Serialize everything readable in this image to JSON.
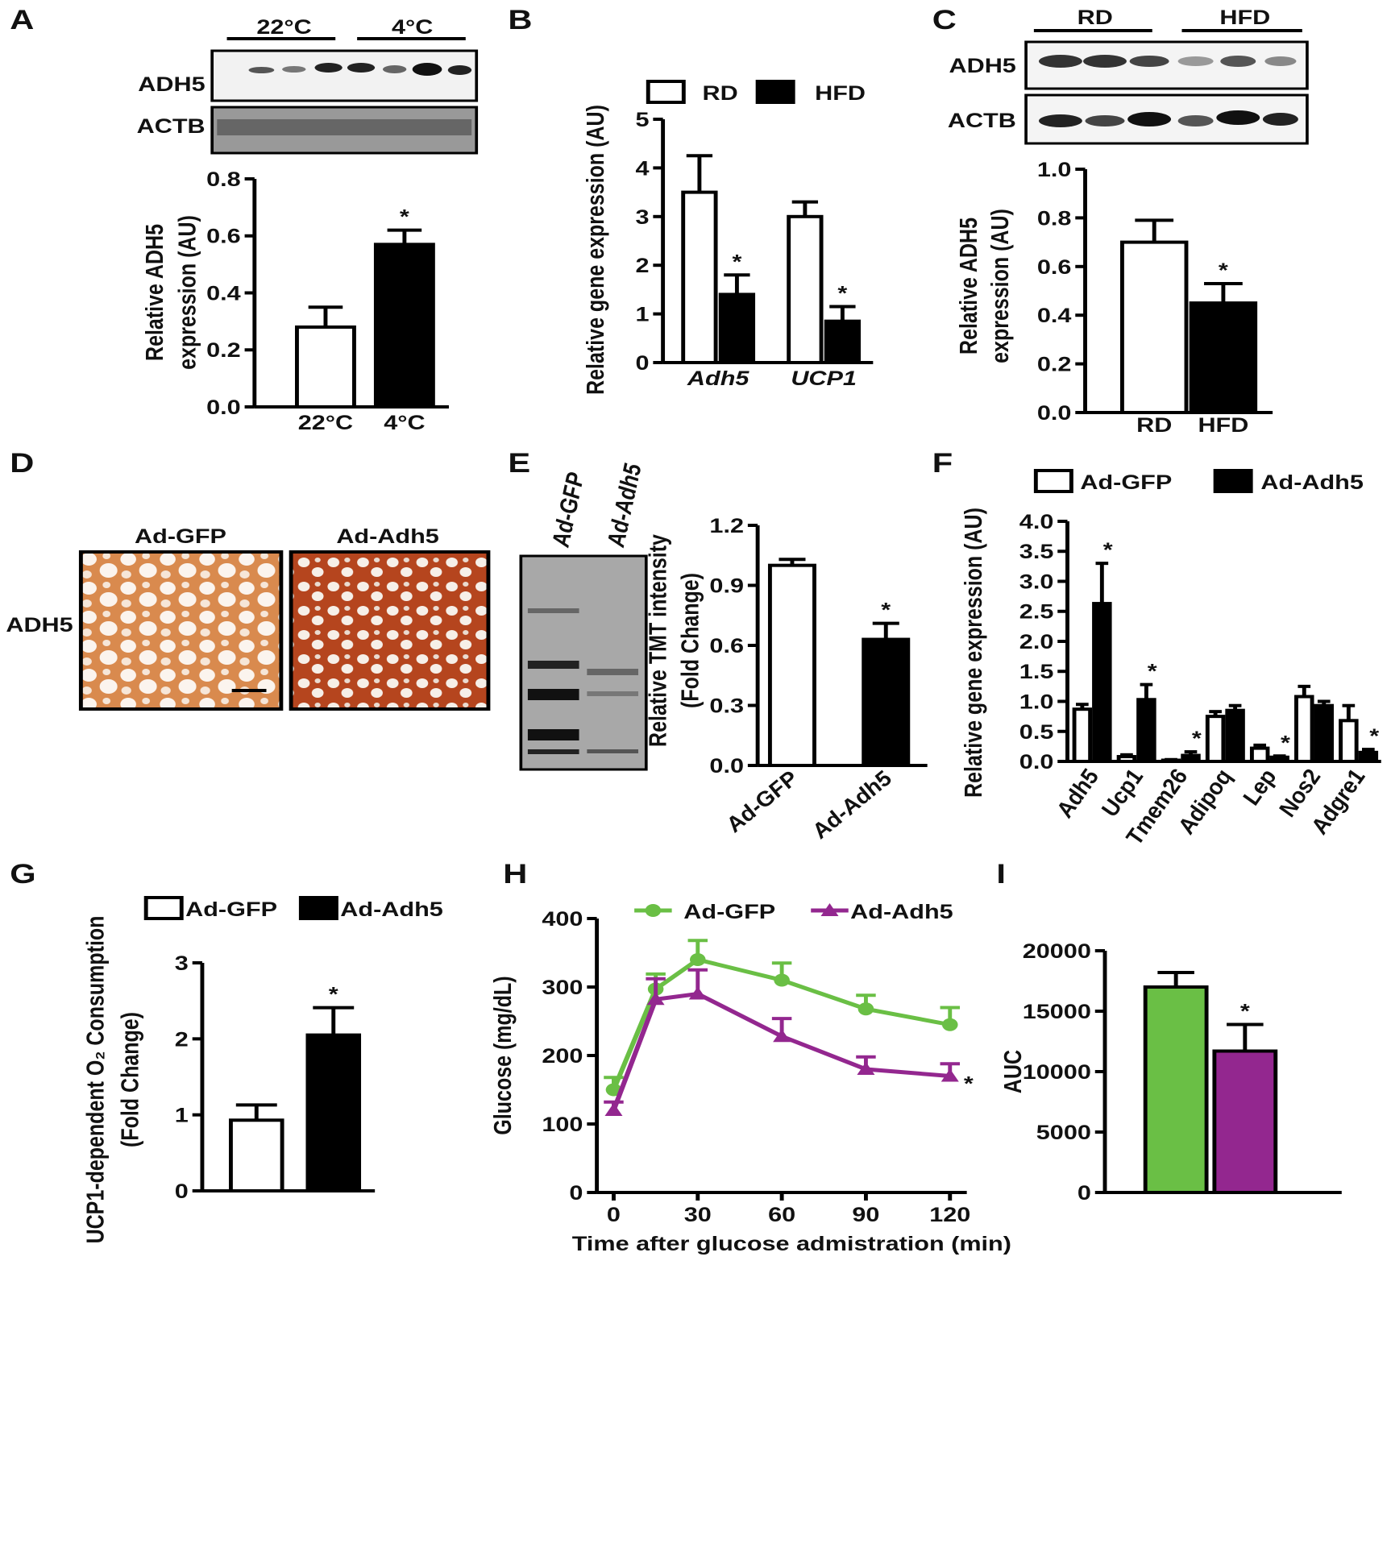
{
  "panels": [
    "A",
    "B",
    "C",
    "D",
    "E",
    "F",
    "G",
    "H",
    "I"
  ],
  "blots": {
    "A": {
      "groups": [
        "22°C",
        "4°C"
      ],
      "rows": [
        "ADH5",
        "ACTB"
      ]
    },
    "C": {
      "groups": [
        "RD",
        "HFD"
      ],
      "rows": [
        "ADH5",
        "ACTB"
      ]
    },
    "D": {
      "columns": [
        "Ad-GFP",
        "Ad-Adh5"
      ],
      "row": "ADH5"
    },
    "E": {
      "lanes": [
        "Ad-GFP",
        "Ad-Adh5"
      ]
    }
  },
  "chart_data": [
    {
      "type": "bar",
      "y_label": [
        "Relative ADH5",
        "expression (AU)"
      ],
      "categories": [
        "22°C",
        "4°C"
      ],
      "values": [
        0.28,
        0.57
      ],
      "errors": [
        0.07,
        0.05
      ],
      "colors": [
        "#ffffff",
        "#000000"
      ],
      "significance": [
        null,
        "*"
      ],
      "ylim": [
        0,
        0.8
      ],
      "yticks": [
        {
          "value": 0,
          "label": "0.0"
        },
        0.2,
        0.4,
        0.6,
        0.8
      ]
    },
    {
      "type": "bar",
      "y_label": [
        "Relative gene expression (AU)"
      ],
      "categories": [
        "Adh5",
        "UCP1"
      ],
      "series": [
        {
          "name": "RD",
          "color": "#ffffff",
          "values": [
            3.5,
            3.0
          ],
          "errors": [
            0.75,
            0.3
          ]
        },
        {
          "name": "HFD",
          "color": "#000000",
          "values": [
            1.4,
            0.85
          ],
          "errors": [
            0.4,
            0.3
          ],
          "significance": [
            "*",
            "*"
          ]
        }
      ],
      "ylim": [
        0,
        5
      ],
      "yticks": [
        0,
        1,
        2,
        3,
        4,
        5
      ]
    },
    {
      "type": "bar",
      "y_label": [
        "Relative ADH5",
        "expression (AU)"
      ],
      "categories": [
        "RD",
        "HFD"
      ],
      "values": [
        0.7,
        0.45
      ],
      "errors": [
        0.09,
        0.08
      ],
      "colors": [
        "#ffffff",
        "#000000"
      ],
      "significance": [
        null,
        "*"
      ],
      "ylim": [
        0,
        1
      ],
      "yticks": [
        {
          "value": 0,
          "label": "0.0"
        },
        0.2,
        0.4,
        0.6,
        0.8,
        {
          "value": 1,
          "label": "1.0"
        }
      ]
    },
    {
      "type": "bar",
      "y_label": [
        "Relative TMT intensity",
        "(Fold Change)"
      ],
      "categories": [
        "Ad-GFP",
        "Ad-Adh5"
      ],
      "values": [
        1.0,
        0.63
      ],
      "errors": [
        0.03,
        0.08
      ],
      "colors": [
        "#ffffff",
        "#000000"
      ],
      "significance": [
        null,
        "*"
      ],
      "ylim": [
        0,
        1.2
      ],
      "yticks": [
        {
          "value": 0,
          "label": "0.0"
        },
        0.3,
        0.6,
        0.9,
        1.2
      ]
    },
    {
      "type": "bar",
      "y_label": [
        "Relative gene expression (AU)"
      ],
      "categories": [
        "Adh5",
        "Ucp1",
        "Tmem26",
        "Adipoq",
        "Lep",
        "Nos2",
        "Adgre1"
      ],
      "series": [
        {
          "name": "Ad-GFP",
          "color": "#ffffff",
          "values": [
            0.87,
            0.08,
            0.02,
            0.75,
            0.22,
            1.08,
            0.68
          ],
          "errors": [
            0.08,
            0.03,
            0.01,
            0.08,
            0.05,
            0.17,
            0.25
          ]
        },
        {
          "name": "Ad-Adh5",
          "color": "#000000",
          "values": [
            2.63,
            1.03,
            0.1,
            0.85,
            0.07,
            0.93,
            0.15
          ],
          "errors": [
            0.67,
            0.25,
            0.06,
            0.08,
            0.02,
            0.07,
            0.05
          ],
          "significance": [
            "*",
            "*",
            "*",
            null,
            "*",
            null,
            "*"
          ]
        }
      ],
      "ylim": [
        0,
        4
      ],
      "yticks": [
        {
          "value": 0,
          "label": "0.0"
        },
        0.5,
        {
          "value": 1,
          "label": "1.0"
        },
        1.5,
        {
          "value": 2,
          "label": "2.0"
        },
        2.5,
        {
          "value": 3,
          "label": "3.0"
        },
        3.5,
        {
          "value": 4,
          "label": "4.0"
        }
      ]
    },
    {
      "type": "bar",
      "y_label": [
        "UCP1-dependent O₂ Consumption",
        "(Fold Change)"
      ],
      "series": [
        {
          "name": "Ad-GFP",
          "color": "#ffffff",
          "values": [
            0.93
          ],
          "errors": [
            0.2
          ]
        },
        {
          "name": "Ad-Adh5",
          "color": "#000000",
          "values": [
            2.05
          ],
          "errors": [
            0.36
          ],
          "significance": [
            "*"
          ]
        }
      ],
      "ylim": [
        0,
        3
      ],
      "yticks": [
        0,
        1,
        2,
        3
      ]
    },
    {
      "type": "line",
      "x_label": "Time after glucose admistration (min)",
      "y_label": [
        "Glucose (mg/dL)"
      ],
      "x": [
        0,
        15,
        30,
        60,
        90,
        120
      ],
      "series": [
        {
          "name": "Ad-GFP",
          "color": "#6abf45",
          "marker": "circle",
          "values": [
            150,
            297,
            340,
            310,
            268,
            245
          ],
          "errors": [
            18,
            22,
            28,
            25,
            20,
            25
          ]
        },
        {
          "name": "Ad-Adh5",
          "color": "#93278f",
          "marker": "triangle",
          "values": [
            120,
            282,
            290,
            228,
            180,
            170
          ],
          "errors": [
            12,
            30,
            35,
            26,
            18,
            18
          ],
          "annotation": "*"
        }
      ],
      "xlim": [
        -6,
        126
      ],
      "xticks": [
        0,
        30,
        60,
        90,
        120
      ],
      "ylim": [
        0,
        400
      ],
      "yticks": [
        0,
        100,
        200,
        300,
        400
      ]
    },
    {
      "type": "bar",
      "y_label": [
        "AUC"
      ],
      "values": [
        17000,
        11700
      ],
      "errors": [
        1200,
        2200
      ],
      "colors": [
        "#6abf45",
        "#93278f"
      ],
      "significance": [
        null,
        "*"
      ],
      "ylim": [
        0,
        20000
      ],
      "yticks": [
        0,
        5000,
        10000,
        15000,
        20000
      ]
    }
  ]
}
